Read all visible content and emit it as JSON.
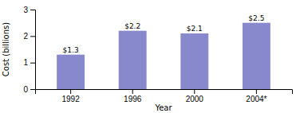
{
  "chart_data": {
    "type": "bar",
    "categories": [
      "1992",
      "1996",
      "2000",
      "2004*"
    ],
    "values": [
      1.3,
      2.2,
      2.1,
      2.5
    ],
    "value_labels": [
      "$1.3",
      "$2.2",
      "$2.1",
      "$2.5"
    ],
    "data_labels": true,
    "color": "#8888cc",
    "xlabel": "Year",
    "ylabel": "Cost (billions)",
    "ylim": [
      0,
      3
    ],
    "yticks": [
      0,
      1,
      2,
      3
    ],
    "grid": false
  }
}
